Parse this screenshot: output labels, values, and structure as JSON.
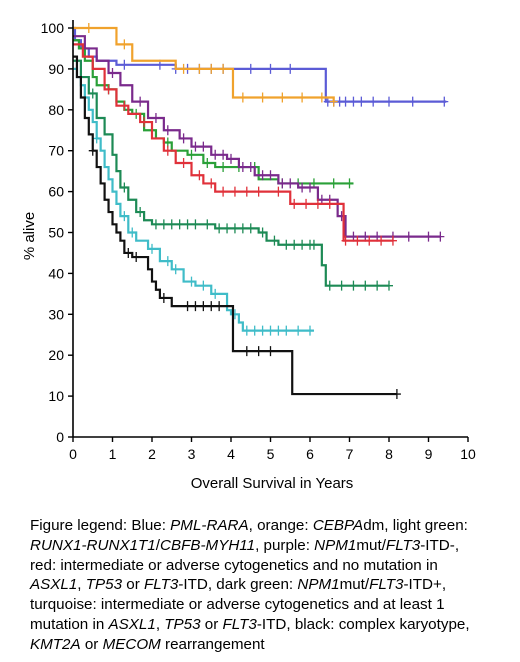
{
  "chart_data": {
    "type": "line",
    "step": true,
    "xlabel": "Overall Survival in Years",
    "ylabel": "% alive",
    "xlim": [
      0,
      10
    ],
    "ylim": [
      0,
      100
    ],
    "xticks": [
      "0",
      "1",
      "2",
      "3",
      "4",
      "5",
      "6",
      "7",
      "8",
      "9",
      "10"
    ],
    "yticks": [
      "0",
      "10",
      "20",
      "30",
      "40",
      "50",
      "60",
      "70",
      "80",
      "90",
      "100"
    ],
    "grid": false,
    "series": [
      {
        "color": "#5b5bd6",
        "points": [
          [
            0,
            100
          ],
          [
            0.05,
            97
          ],
          [
            0.2,
            95
          ],
          [
            0.4,
            93
          ],
          [
            0.6,
            92
          ],
          [
            1.1,
            91
          ],
          [
            2,
            91
          ],
          [
            2.6,
            90
          ],
          [
            4.2,
            90
          ],
          [
            6.3,
            90
          ],
          [
            6.4,
            82
          ],
          [
            9.45,
            82
          ]
        ],
        "censors": [
          [
            1.3,
            91
          ],
          [
            2.2,
            91
          ],
          [
            2.6,
            90
          ],
          [
            2.9,
            90
          ],
          [
            3.2,
            90
          ],
          [
            3.5,
            90
          ],
          [
            3.8,
            90
          ],
          [
            4.5,
            90
          ],
          [
            5.0,
            90
          ],
          [
            5.5,
            90
          ],
          [
            6.45,
            82
          ],
          [
            6.6,
            82
          ],
          [
            6.75,
            82
          ],
          [
            6.9,
            82
          ],
          [
            7.1,
            82
          ],
          [
            7.3,
            82
          ],
          [
            7.6,
            82
          ],
          [
            8.0,
            82
          ],
          [
            8.6,
            82
          ],
          [
            9.4,
            82
          ]
        ]
      },
      {
        "color": "#f0a22c",
        "points": [
          [
            0,
            100
          ],
          [
            0.7,
            100
          ],
          [
            1.1,
            96
          ],
          [
            1.5,
            92
          ],
          [
            2.3,
            92
          ],
          [
            2.6,
            90
          ],
          [
            4.0,
            90
          ],
          [
            4.05,
            83
          ],
          [
            5.8,
            83
          ],
          [
            5.9,
            83
          ],
          [
            6.6,
            82
          ]
        ],
        "censors": [
          [
            0.4,
            100
          ],
          [
            1.3,
            96
          ],
          [
            2.8,
            90
          ],
          [
            3.2,
            90
          ],
          [
            3.5,
            90
          ],
          [
            3.8,
            90
          ],
          [
            4.3,
            83
          ],
          [
            4.8,
            83
          ],
          [
            5.3,
            83
          ],
          [
            5.8,
            83
          ],
          [
            6.3,
            83
          ],
          [
            6.6,
            82
          ]
        ]
      },
      {
        "color": "#2aa038",
        "points": [
          [
            0,
            97
          ],
          [
            0.15,
            95
          ],
          [
            0.3,
            92
          ],
          [
            0.5,
            88
          ],
          [
            0.6,
            86
          ],
          [
            0.9,
            85
          ],
          [
            1.1,
            82
          ],
          [
            1.3,
            80
          ],
          [
            1.5,
            79
          ],
          [
            1.8,
            75
          ],
          [
            2.1,
            73
          ],
          [
            2.3,
            72
          ],
          [
            2.5,
            70
          ],
          [
            2.9,
            69
          ],
          [
            3.3,
            67
          ],
          [
            3.6,
            66
          ],
          [
            4.1,
            66
          ],
          [
            4.3,
            66
          ],
          [
            4.7,
            63
          ],
          [
            5.2,
            62
          ],
          [
            7.1,
            62
          ]
        ],
        "censors": [
          [
            0.9,
            85
          ],
          [
            1.6,
            79
          ],
          [
            2.4,
            72
          ],
          [
            3.0,
            69
          ],
          [
            3.4,
            67
          ],
          [
            3.8,
            66
          ],
          [
            4.2,
            66
          ],
          [
            4.6,
            66
          ],
          [
            5.3,
            62
          ],
          [
            5.7,
            62
          ],
          [
            6.1,
            62
          ],
          [
            6.6,
            62
          ],
          [
            7.0,
            62
          ]
        ]
      },
      {
        "color": "#7a2a8c",
        "points": [
          [
            0,
            98
          ],
          [
            0.3,
            95
          ],
          [
            0.6,
            92
          ],
          [
            0.9,
            89
          ],
          [
            1.2,
            86
          ],
          [
            1.5,
            82
          ],
          [
            1.9,
            78
          ],
          [
            2.3,
            75
          ],
          [
            2.7,
            73
          ],
          [
            3.0,
            71
          ],
          [
            3.5,
            69
          ],
          [
            3.9,
            68
          ],
          [
            4.2,
            66
          ],
          [
            4.6,
            64
          ],
          [
            5.2,
            62
          ],
          [
            5.7,
            61
          ],
          [
            6.2,
            58
          ],
          [
            6.7,
            54
          ],
          [
            6.9,
            49
          ],
          [
            9.3,
            49
          ]
        ],
        "censors": [
          [
            1.0,
            89
          ],
          [
            1.7,
            82
          ],
          [
            2.1,
            78
          ],
          [
            2.4,
            75
          ],
          [
            2.8,
            73
          ],
          [
            3.1,
            71
          ],
          [
            3.3,
            71
          ],
          [
            3.6,
            69
          ],
          [
            3.8,
            69
          ],
          [
            4.0,
            68
          ],
          [
            4.3,
            66
          ],
          [
            4.5,
            66
          ],
          [
            4.8,
            64
          ],
          [
            5.0,
            64
          ],
          [
            5.3,
            62
          ],
          [
            5.5,
            62
          ],
          [
            5.8,
            61
          ],
          [
            6.0,
            61
          ],
          [
            6.3,
            58
          ],
          [
            6.5,
            58
          ],
          [
            6.8,
            54
          ],
          [
            7.1,
            49
          ],
          [
            7.4,
            49
          ],
          [
            7.7,
            49
          ],
          [
            8.1,
            49
          ],
          [
            8.5,
            49
          ],
          [
            9.0,
            49
          ],
          [
            9.3,
            49
          ]
        ]
      },
      {
        "color": "#e0313a",
        "points": [
          [
            0,
            96
          ],
          [
            0.25,
            93
          ],
          [
            0.5,
            90
          ],
          [
            0.8,
            85
          ],
          [
            1.1,
            81
          ],
          [
            1.4,
            79
          ],
          [
            1.7,
            77
          ],
          [
            2.0,
            73
          ],
          [
            2.3,
            70
          ],
          [
            2.6,
            67
          ],
          [
            3.0,
            64
          ],
          [
            3.3,
            62
          ],
          [
            3.6,
            60
          ],
          [
            5.0,
            60
          ],
          [
            5.5,
            57
          ],
          [
            6.8,
            57
          ],
          [
            6.85,
            48
          ],
          [
            8.1,
            48
          ]
        ],
        "censors": [
          [
            0.9,
            85
          ],
          [
            1.3,
            81
          ],
          [
            1.8,
            77
          ],
          [
            2.4,
            70
          ],
          [
            2.8,
            67
          ],
          [
            3.2,
            64
          ],
          [
            3.5,
            62
          ],
          [
            3.8,
            60
          ],
          [
            4.1,
            60
          ],
          [
            4.4,
            60
          ],
          [
            4.7,
            60
          ],
          [
            5.2,
            60
          ],
          [
            5.6,
            57
          ],
          [
            5.9,
            57
          ],
          [
            6.2,
            57
          ],
          [
            6.5,
            57
          ],
          [
            6.9,
            48
          ],
          [
            7.2,
            48
          ],
          [
            7.5,
            48
          ],
          [
            7.8,
            48
          ],
          [
            8.1,
            48
          ]
        ]
      },
      {
        "color": "#1d8a55",
        "points": [
          [
            0,
            92
          ],
          [
            0.2,
            88
          ],
          [
            0.4,
            84
          ],
          [
            0.6,
            78
          ],
          [
            0.8,
            74
          ],
          [
            1.0,
            69
          ],
          [
            1.1,
            65
          ],
          [
            1.2,
            61
          ],
          [
            1.4,
            58
          ],
          [
            1.6,
            55
          ],
          [
            1.8,
            53
          ],
          [
            2.0,
            52
          ],
          [
            3.3,
            52
          ],
          [
            3.6,
            51
          ],
          [
            4.7,
            50
          ],
          [
            4.9,
            48
          ],
          [
            5.2,
            47
          ],
          [
            6.2,
            47
          ],
          [
            6.3,
            42
          ],
          [
            6.4,
            37
          ],
          [
            8.0,
            37
          ]
        ],
        "censors": [
          [
            0.5,
            84
          ],
          [
            1.3,
            61
          ],
          [
            1.7,
            55
          ],
          [
            2.1,
            52
          ],
          [
            2.3,
            52
          ],
          [
            2.5,
            52
          ],
          [
            2.7,
            52
          ],
          [
            2.9,
            52
          ],
          [
            3.1,
            52
          ],
          [
            3.4,
            52
          ],
          [
            3.7,
            51
          ],
          [
            3.9,
            51
          ],
          [
            4.1,
            51
          ],
          [
            4.3,
            51
          ],
          [
            4.5,
            51
          ],
          [
            4.8,
            50
          ],
          [
            5.1,
            48
          ],
          [
            5.4,
            47
          ],
          [
            5.6,
            47
          ],
          [
            5.8,
            47
          ],
          [
            6.0,
            47
          ],
          [
            6.1,
            47
          ],
          [
            6.5,
            37
          ],
          [
            6.8,
            37
          ],
          [
            7.1,
            37
          ],
          [
            7.4,
            37
          ],
          [
            7.7,
            37
          ],
          [
            8.0,
            37
          ]
        ]
      },
      {
        "color": "#3fbcc8",
        "points": [
          [
            0,
            90
          ],
          [
            0.1,
            88
          ],
          [
            0.2,
            86
          ],
          [
            0.3,
            83
          ],
          [
            0.4,
            80
          ],
          [
            0.5,
            77
          ],
          [
            0.6,
            73
          ],
          [
            0.7,
            70
          ],
          [
            0.8,
            66
          ],
          [
            0.9,
            63
          ],
          [
            1.0,
            60
          ],
          [
            1.1,
            57
          ],
          [
            1.2,
            54
          ],
          [
            1.4,
            50
          ],
          [
            1.6,
            48
          ],
          [
            1.9,
            46
          ],
          [
            2.2,
            43
          ],
          [
            2.5,
            41
          ],
          [
            2.8,
            38
          ],
          [
            3.1,
            37
          ],
          [
            3.5,
            35
          ],
          [
            3.9,
            31
          ],
          [
            4.0,
            30
          ],
          [
            4.2,
            28
          ],
          [
            4.3,
            26
          ],
          [
            6.1,
            26
          ]
        ],
        "censors": [
          [
            0.6,
            73
          ],
          [
            1.3,
            54
          ],
          [
            1.5,
            50
          ],
          [
            2.0,
            46
          ],
          [
            2.4,
            43
          ],
          [
            2.6,
            41
          ],
          [
            3.0,
            38
          ],
          [
            3.3,
            37
          ],
          [
            3.6,
            35
          ],
          [
            4.1,
            30
          ],
          [
            4.4,
            26
          ],
          [
            4.6,
            26
          ],
          [
            4.8,
            26
          ],
          [
            5.0,
            26
          ],
          [
            5.2,
            26
          ],
          [
            5.4,
            26
          ],
          [
            5.7,
            26
          ],
          [
            6.0,
            26
          ]
        ]
      },
      {
        "color": "#111111",
        "points": [
          [
            0,
            93
          ],
          [
            0.1,
            88
          ],
          [
            0.2,
            83
          ],
          [
            0.3,
            78
          ],
          [
            0.4,
            74
          ],
          [
            0.5,
            70
          ],
          [
            0.6,
            66
          ],
          [
            0.7,
            62
          ],
          [
            0.8,
            58
          ],
          [
            0.9,
            55
          ],
          [
            1.0,
            52
          ],
          [
            1.1,
            50
          ],
          [
            1.2,
            48
          ],
          [
            1.3,
            45
          ],
          [
            1.5,
            44
          ],
          [
            1.8,
            44
          ],
          [
            1.9,
            41
          ],
          [
            2.0,
            38
          ],
          [
            2.1,
            36
          ],
          [
            2.2,
            34
          ],
          [
            2.5,
            32
          ],
          [
            3.9,
            32
          ],
          [
            4.05,
            21
          ],
          [
            4.7,
            21
          ],
          [
            5.5,
            21
          ],
          [
            5.55,
            10.5
          ],
          [
            8.2,
            10.5
          ]
        ],
        "censors": [
          [
            0.5,
            70
          ],
          [
            1.4,
            45
          ],
          [
            1.6,
            44
          ],
          [
            2.3,
            34
          ],
          [
            2.9,
            32
          ],
          [
            3.1,
            32
          ],
          [
            3.3,
            32
          ],
          [
            3.5,
            32
          ],
          [
            3.7,
            32
          ],
          [
            4.4,
            21
          ],
          [
            4.7,
            21
          ],
          [
            5.0,
            21
          ],
          [
            8.2,
            10.5
          ]
        ]
      }
    ]
  },
  "legend": {
    "l1_a": "Figure legend: Blue: ",
    "l1_b": "PML-RARA",
    "l1_c": ", orange: ",
    "l1_d": "CEBPA",
    "l1_e": "dm, light green:",
    "l2_a": "RUNX1-RUNX1T1",
    "l2_b": "/",
    "l2_c": "CBFB-MYH11",
    "l2_d": ", purple: ",
    "l2_e": "NPM1",
    "l2_f": "mut/",
    "l2_g": "FLT3",
    "l2_h": "-ITD-,",
    "l3_a": "red: intermediate or adverse cytogenetics and no mutation in",
    "l4_a": "ASXL1",
    "l4_b": ", ",
    "l4_c": "TP53",
    "l4_d": " or ",
    "l4_e": "FLT3",
    "l4_f": "-ITD, dark green: ",
    "l4_g": "NPM1",
    "l4_h": "mut/",
    "l4_i": "FLT3",
    "l4_j": "-ITD+,",
    "l5_a": "turquoise: intermediate or adverse cytogenetics and at least 1",
    "l6_a": "mutation in ",
    "l6_b": "ASXL1",
    "l6_c": ", ",
    "l6_d": "TP53",
    "l6_e": " or ",
    "l6_f": "FLT3",
    "l6_g": "-ITD, black: complex karyotype,",
    "l7_a": "KMT2A",
    "l7_b": " or ",
    "l7_c": "MECOM",
    "l7_d": " rearrangement"
  }
}
